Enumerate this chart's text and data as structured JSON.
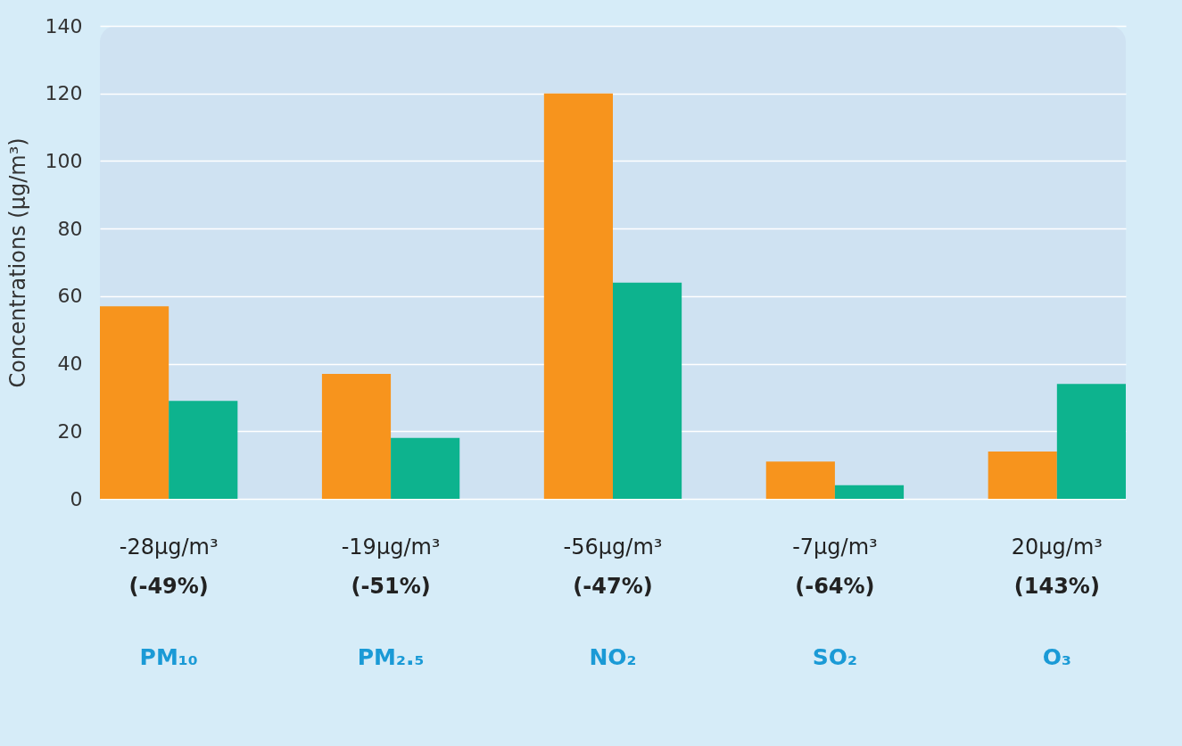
{
  "chart_data": {
    "type": "bar",
    "ylabel": "Concentrations (µg/m³)",
    "categories": [
      "PM₁₀",
      "PM₂.₅",
      "NO₂",
      "SO₂",
      "O₃"
    ],
    "series": [
      {
        "color": "#f7941d",
        "values": [
          57,
          37,
          120,
          11,
          14
        ]
      },
      {
        "color": "#0db38e",
        "values": [
          29,
          18,
          64,
          4,
          34
        ]
      }
    ],
    "ylim": [
      0,
      140
    ],
    "yticks": [
      0,
      20,
      40,
      60,
      80,
      100,
      120,
      140
    ],
    "grid": "y",
    "annotations": [
      "-28µg/m³",
      "(-49%)",
      "-19µg/m³",
      "(-51%)",
      "-56µg/m³",
      "(-47%)",
      "-7µg/m³",
      "(-64%)",
      "20µg/m³",
      "(143%)"
    ]
  }
}
